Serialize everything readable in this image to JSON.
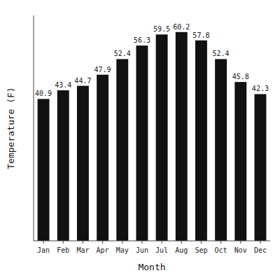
{
  "chart_data": {
    "type": "bar",
    "categories": [
      "Jan",
      "Feb",
      "Mar",
      "Apr",
      "May",
      "Jun",
      "Jul",
      "Aug",
      "Sep",
      "Oct",
      "Nov",
      "Dec"
    ],
    "values": [
      40.9,
      43.4,
      44.7,
      47.9,
      52.4,
      56.3,
      59.5,
      60.2,
      57.8,
      52.4,
      45.8,
      42.3
    ],
    "color": "#111111",
    "xlabel": "Month",
    "ylabel": "Temperature (F)",
    "ylim": [
      0,
      65
    ],
    "grid": false,
    "data_labels": true,
    "tick_labels": "x"
  }
}
